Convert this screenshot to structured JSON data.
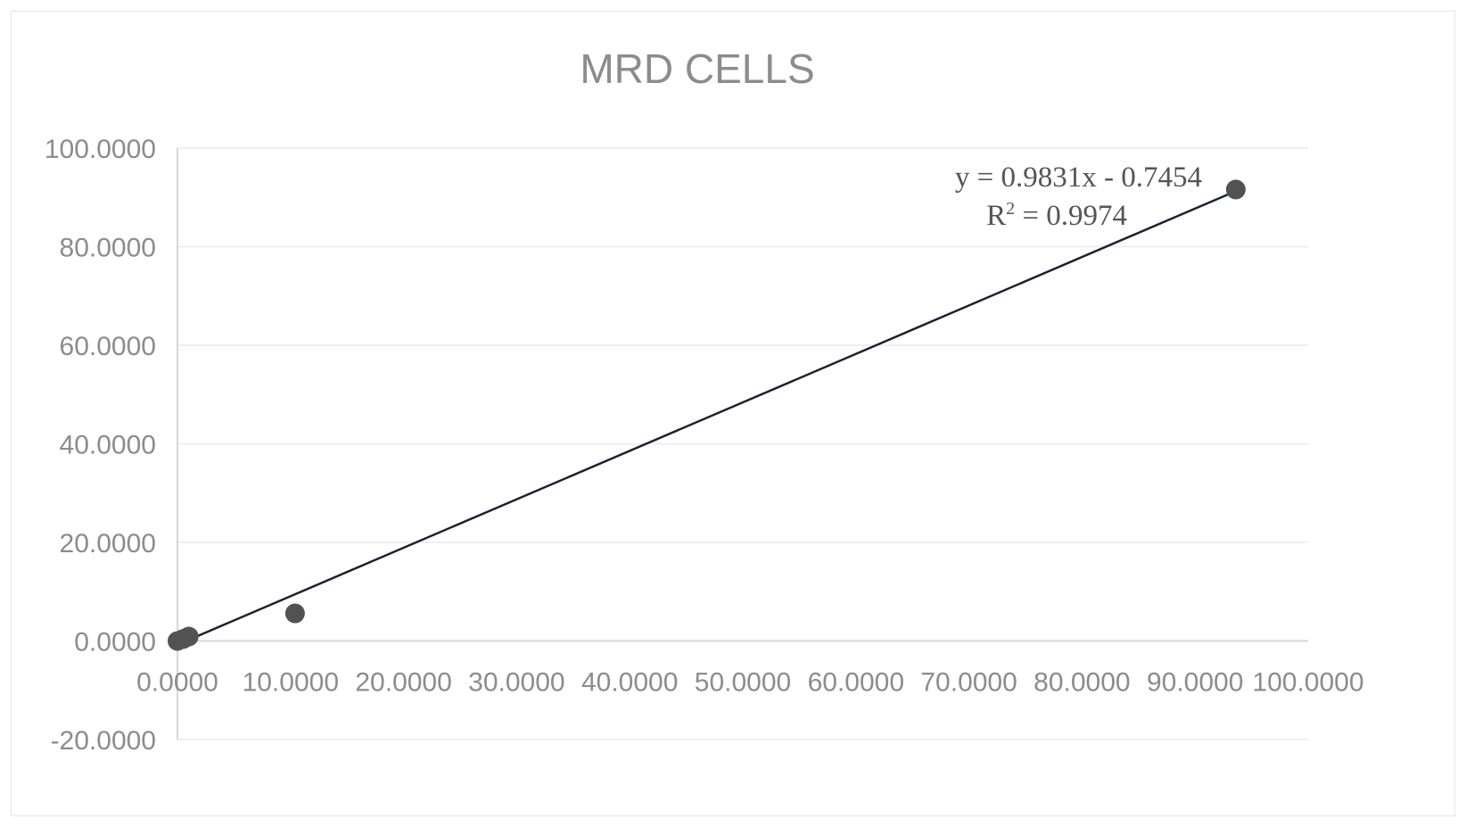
{
  "chart_data": {
    "type": "scatter",
    "title": "MRD CELLS",
    "xlabel": "",
    "ylabel": "",
    "xlim": [
      0,
      100
    ],
    "ylim": [
      -20,
      100
    ],
    "x_ticks": [
      0,
      10,
      20,
      30,
      40,
      50,
      60,
      70,
      80,
      90,
      100
    ],
    "y_ticks": [
      -20,
      0,
      20,
      40,
      60,
      80,
      100
    ],
    "x_tick_labels": [
      "0.0000",
      "10.0000",
      "20.0000",
      "30.0000",
      "40.0000",
      "50.0000",
      "60.0000",
      "70.0000",
      "80.0000",
      "90.0000",
      "100.0000"
    ],
    "y_tick_labels": [
      "-20.0000",
      "0.0000",
      "20.0000",
      "40.0000",
      "60.0000",
      "80.0000",
      "100.0000"
    ],
    "grid": "horizontal",
    "series": [
      {
        "points": [
          {
            "x": 0.0,
            "y": 0.0
          },
          {
            "x": 0.5,
            "y": 0.4
          },
          {
            "x": 1.0,
            "y": 0.9
          },
          {
            "x": 10.4,
            "y": 5.6
          },
          {
            "x": 93.6,
            "y": 91.6
          }
        ]
      }
    ],
    "trendline": {
      "type": "linear",
      "slope": 0.9831,
      "intercept": -0.7454,
      "x_range": [
        0,
        93.6
      ],
      "equation_text": "y = 0.9831x - 0.7454",
      "r2_prefix": "R",
      "r2_superscript": "2",
      "r2_suffix": " = 0.9974"
    },
    "colors": {
      "point": "#525252",
      "trendline": "#1b2330",
      "text": "#8c8c8c",
      "grid": "#eaeaea"
    }
  }
}
